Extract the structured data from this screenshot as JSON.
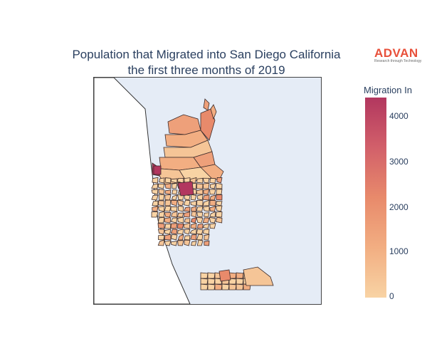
{
  "title": {
    "line1": "Population that Migrated into San Diego California",
    "line2": "the first three months of 2019"
  },
  "logo": {
    "name": "ADVAN",
    "tagline": "Research through Technology"
  },
  "colorbar": {
    "title": "Migration In",
    "min": 0,
    "max": 4400,
    "ticks": [
      "0",
      "1000",
      "2000",
      "3000",
      "4000"
    ],
    "colors": {
      "low": "#f8d3a4",
      "mid": "#e88a6b",
      "high": "#b2375f"
    }
  },
  "map": {
    "region": "San Diego, California",
    "land_color": "#ffffff",
    "ocean_color": "#e5ecf6",
    "tract_border": "#3a2a2a"
  }
}
